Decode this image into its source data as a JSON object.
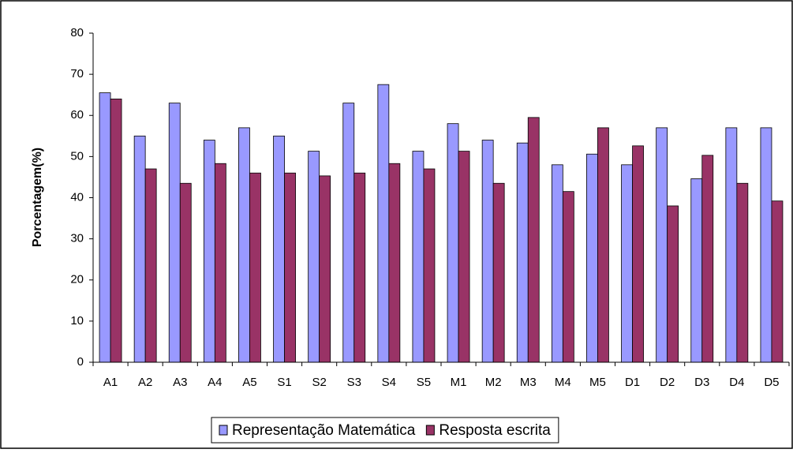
{
  "chart_data": {
    "type": "bar",
    "y_label": "Porcentagem(%)",
    "categories": [
      "A1",
      "A2",
      "A3",
      "A4",
      "A5",
      "S1",
      "S2",
      "S3",
      "S4",
      "S5",
      "M1",
      "M2",
      "M3",
      "M4",
      "M5",
      "D1",
      "D2",
      "D3",
      "D4",
      "D5"
    ],
    "series": [
      {
        "name": "Representação Matemática",
        "color": "#9999ff",
        "values": [
          65.5,
          55,
          63,
          54,
          57,
          55,
          51.3,
          63,
          67.5,
          51.3,
          58,
          54,
          53.3,
          48,
          50.6,
          48,
          57,
          44.6,
          57,
          57
        ]
      },
      {
        "name": "Resposta escrita",
        "color": "#993366",
        "values": [
          64,
          47,
          43.5,
          48.3,
          46,
          46,
          45.3,
          46,
          48.3,
          47,
          51.3,
          43.5,
          59.5,
          41.5,
          57,
          52.6,
          38,
          50.3,
          43.5,
          39.2
        ]
      }
    ],
    "ylim": [
      0,
      80
    ],
    "yticks": [
      0,
      10,
      20,
      30,
      40,
      50,
      60,
      70,
      80
    ],
    "grid": false,
    "legend": "bottom"
  }
}
